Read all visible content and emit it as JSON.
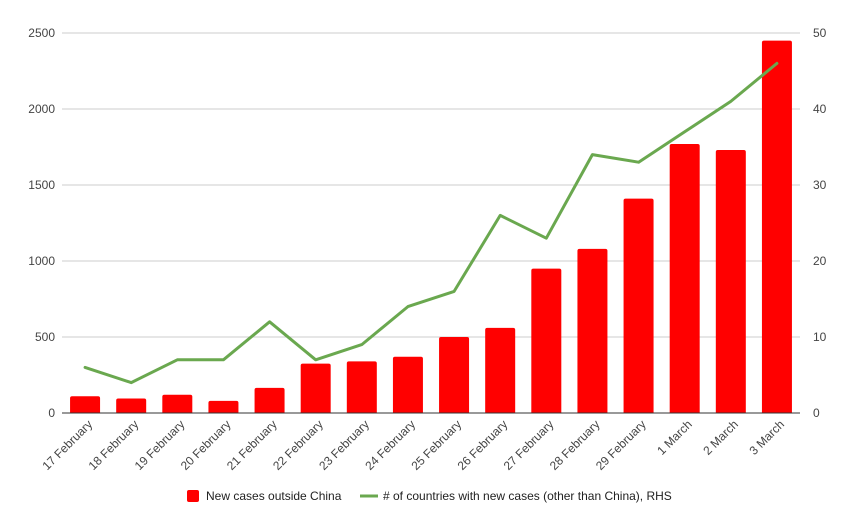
{
  "chart_data": {
    "type": "bar",
    "categories": [
      "17 February",
      "18 February",
      "19 February",
      "20 February",
      "21 February",
      "22 February",
      "23 February",
      "24 February",
      "25 February",
      "26 February",
      "27 February",
      "28 February",
      "29 February",
      "1 March",
      "2 March",
      "3 March"
    ],
    "series": [
      {
        "name": "New cases outside China",
        "type": "bar",
        "axis": "left",
        "color": "#ff0000",
        "values": [
          110,
          95,
          120,
          80,
          165,
          325,
          340,
          370,
          500,
          560,
          950,
          1080,
          1410,
          1770,
          1730,
          2450
        ]
      },
      {
        "name": "# of countries with new cases (other than China), RHS",
        "type": "line",
        "axis": "right",
        "color": "#6aa84f",
        "values": [
          6,
          4,
          7,
          7,
          12,
          7,
          9,
          14,
          16,
          26,
          23,
          34,
          33,
          37,
          41,
          46
        ]
      }
    ],
    "y_left": {
      "range": [
        0,
        2500
      ],
      "ticks": [
        "0",
        "500",
        "1000",
        "1500",
        "2000",
        "2500"
      ]
    },
    "y_right": {
      "range": [
        0,
        50
      ],
      "ticks": [
        "0",
        "10",
        "20",
        "30",
        "40",
        "50"
      ]
    },
    "grid": true,
    "legend_position": "bottom",
    "title": "",
    "xlabel": "",
    "ylabel": ""
  }
}
